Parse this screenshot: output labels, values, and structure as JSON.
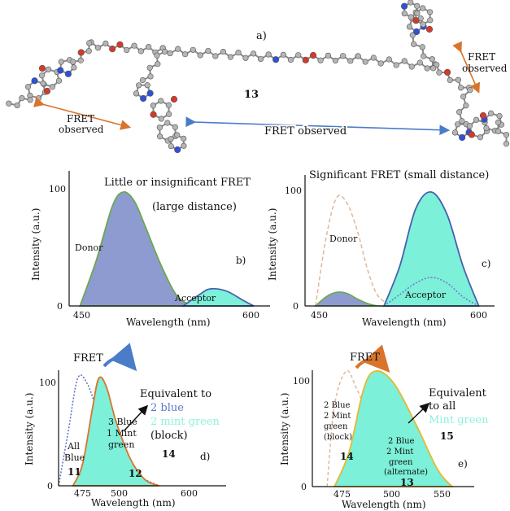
{
  "molecule": {
    "panel_label": "a)",
    "compound": "13",
    "fret_left": [
      "FRET",
      "observed"
    ],
    "fret_right": [
      "FRET",
      "observed"
    ],
    "fret_center": "FRET observed"
  },
  "colors": {
    "donor_fill": "#8e9bd0",
    "donor_line": "#6aa84f",
    "acceptor_fill": "#7cf0d8",
    "acceptor_line_blue": "#4760b0",
    "acceptor_line_orange": "#d8742c",
    "acceptor_line_yellow": "#e6b830",
    "donor_dotted": "#5870c0",
    "donor_dashed_tan": "#e0b89a",
    "arrow_orange": "#d8742c",
    "arrow_blue": "#4a7cc8",
    "mint_text": "#8ff0dc",
    "blue_text": "#5a78c8"
  },
  "chart_data": [
    {
      "type": "area",
      "panel": "b)",
      "title": "Little or insignificant FRET",
      "subtitle": "(large distance)",
      "xlabel": "Wavelength (nm)",
      "ylabel": "Intensity (a.u.)",
      "xticks": [
        "450",
        "600"
      ],
      "yticks": [
        "0",
        "100"
      ],
      "series": [
        {
          "name": "Donor",
          "x": [
            440,
            455,
            470,
            480,
            490,
            500,
            515,
            530,
            545
          ],
          "y": [
            0,
            40,
            88,
            100,
            92,
            70,
            35,
            8,
            0
          ]
        },
        {
          "name": "Acceptor",
          "x": [
            535,
            550,
            560,
            575,
            590,
            600
          ],
          "y": [
            0,
            10,
            15,
            13,
            5,
            0
          ]
        }
      ]
    },
    {
      "type": "area",
      "panel": "c)",
      "title": "Significant FRET (small distance)",
      "xlabel": "Wavelength (nm)",
      "ylabel": "Intensity (a.u.)",
      "xticks": [
        "450",
        "600"
      ],
      "yticks": [
        "0",
        "100"
      ],
      "series": [
        {
          "name": "Donor",
          "x": [
            440,
            450,
            460,
            470,
            480,
            490,
            500,
            515
          ],
          "y": [
            0,
            8,
            12,
            11,
            6,
            2,
            0,
            0
          ]
        },
        {
          "name": "Donor (without FRET)",
          "x": [
            440,
            450,
            460,
            470,
            480,
            490,
            500,
            515
          ],
          "y": [
            0,
            60,
            95,
            90,
            65,
            30,
            8,
            0
          ]
        },
        {
          "name": "Acceptor",
          "x": [
            505,
            520,
            535,
            550,
            565,
            580,
            595
          ],
          "y": [
            0,
            35,
            85,
            100,
            80,
            35,
            0
          ]
        },
        {
          "name": "Acceptor (without FRET)",
          "x": [
            505,
            520,
            535,
            550,
            565,
            580,
            595
          ],
          "y": [
            0,
            10,
            20,
            25,
            20,
            8,
            0
          ]
        }
      ]
    },
    {
      "type": "area",
      "panel": "d)",
      "xlabel": "Wavelength (nm)",
      "ylabel": "Intensity (a.u.)",
      "xticks": [
        "475",
        "500",
        "600"
      ],
      "yticks": [
        "0",
        "100"
      ],
      "series": [
        {
          "name": "All Blue 11",
          "x": [
            455,
            465,
            475,
            485,
            495,
            505,
            520,
            540,
            560
          ],
          "y": [
            0,
            50,
            100,
            95,
            70,
            40,
            20,
            8,
            0
          ]
        },
        {
          "name": "3 Blue 1 Mint green 12",
          "x": [
            470,
            480,
            490,
            497,
            505,
            515,
            530,
            545,
            560
          ],
          "y": [
            0,
            20,
            70,
            100,
            92,
            60,
            25,
            6,
            0
          ]
        }
      ]
    },
    {
      "type": "area",
      "panel": "e)",
      "xlabel": "Wavelength (nm)",
      "ylabel": "Intensity (a.u.)",
      "xticks": [
        "475",
        "500",
        "550"
      ],
      "yticks": [
        "0",
        "100"
      ],
      "series": [
        {
          "name": "2 Blue 2 Mint green (block) 14",
          "x": [
            465,
            470,
            478,
            485,
            495,
            505,
            512
          ],
          "y": [
            0,
            70,
            100,
            85,
            55,
            20,
            0
          ]
        },
        {
          "name": "2 Blue 2 Mint green (alternate) 13",
          "x": [
            470,
            480,
            490,
            498,
            510,
            525,
            540,
            550
          ],
          "y": [
            0,
            30,
            85,
            100,
            90,
            55,
            15,
            0
          ]
        }
      ]
    }
  ],
  "panel_b": {
    "title": "Little or insignificant FRET",
    "subtitle": "(large distance)",
    "donor": "Donor",
    "acceptor": "Acceptor",
    "label": "b)",
    "xlabel": "Wavelength (nm)",
    "ylabel": "Intensity (a.u.)",
    "y100": "100",
    "y0": "0",
    "x1": "450",
    "x2": "600"
  },
  "panel_c": {
    "title": "Significant FRET (small distance)",
    "donor": "Donor",
    "acceptor": "Acceptor",
    "label": "c)",
    "xlabel": "Wavelength (nm)",
    "ylabel": "Intensity (a.u.)",
    "y100": "100",
    "y0": "0",
    "x1": "450",
    "x2": "600"
  },
  "panel_d": {
    "fret": "FRET",
    "equiv1": "Equivalent to",
    "equiv2": "2 blue",
    "equiv3": "2 mint green",
    "equiv4": "(block)",
    "num14": "14",
    "s1a": "All",
    "s1b": "Blue",
    "s1n": "11",
    "s2a": "3 Blue",
    "s2b": "1 Mint",
    "s2c": "green",
    "s2n": "12",
    "label": "d)",
    "xlabel": "Wavelength (nm)",
    "ylabel": "Intensity (a.u.)",
    "y100": "100",
    "y0": "0",
    "x1": "475",
    "x2": "500",
    "x3": "600"
  },
  "panel_e": {
    "fret": "FRET",
    "equiv1": "Equivalent",
    "equiv2": "to all",
    "equiv3": "Mint green",
    "num15": "15",
    "s1a": "2 Blue",
    "s1b": "2 Mint",
    "s1c": "green",
    "s1d": "(block)",
    "s1n": "14",
    "s2a": "2 Blue",
    "s2b": "2 Mint",
    "s2c": "green",
    "s2d": "(alternate)",
    "s2n": "13",
    "label": "e)",
    "xlabel": "Wavelength (nm)",
    "ylabel": "Intensity (a.u.)",
    "y100": "100",
    "y0": "0",
    "x1": "475",
    "x2": "500",
    "x3": "550"
  }
}
